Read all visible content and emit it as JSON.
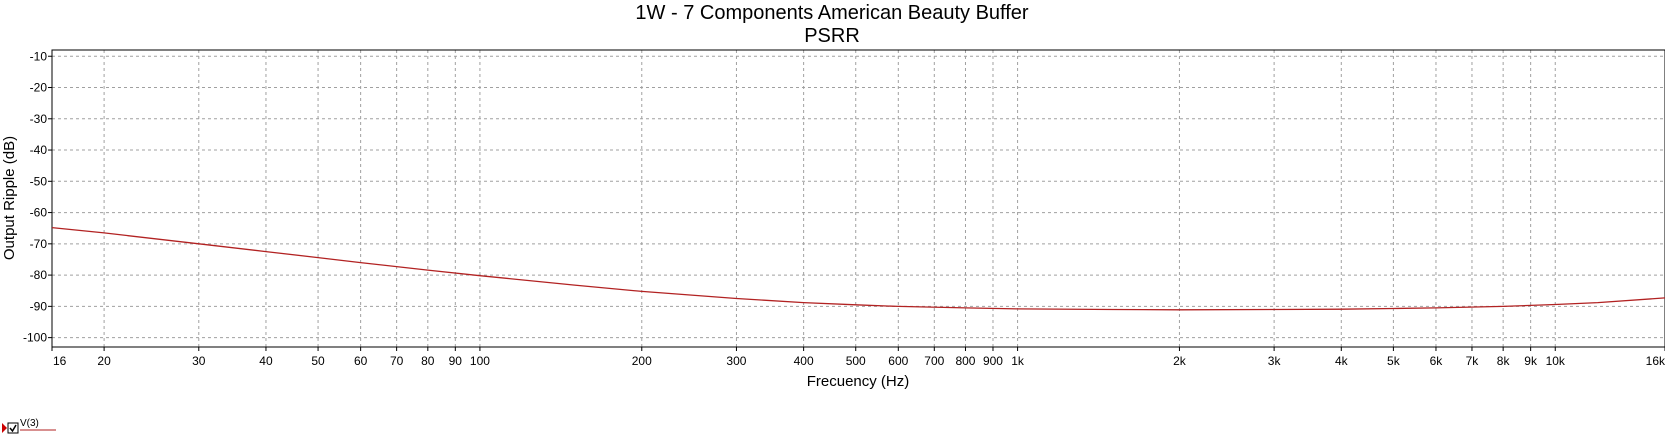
{
  "chart_data": {
    "type": "line",
    "title": "1W - 7 Components American Beauty Buffer",
    "subtitle": "PSRR",
    "xlabel": "Frecuency (Hz)",
    "ylabel": "Output Ripple (dB)",
    "x_scale": "log",
    "xlim": [
      16,
      16000
    ],
    "ylim": [
      -103,
      -8
    ],
    "grid": true,
    "x_ticks": [
      {
        "v": 16,
        "label": "16"
      },
      {
        "v": 20,
        "label": "20"
      },
      {
        "v": 30,
        "label": "30"
      },
      {
        "v": 40,
        "label": "40"
      },
      {
        "v": 50,
        "label": "50"
      },
      {
        "v": 60,
        "label": "60"
      },
      {
        "v": 70,
        "label": "70"
      },
      {
        "v": 80,
        "label": "80"
      },
      {
        "v": 90,
        "label": "90"
      },
      {
        "v": 100,
        "label": "100"
      },
      {
        "v": 200,
        "label": "200"
      },
      {
        "v": 300,
        "label": "300"
      },
      {
        "v": 400,
        "label": "400"
      },
      {
        "v": 500,
        "label": "500"
      },
      {
        "v": 600,
        "label": "600"
      },
      {
        "v": 700,
        "label": "700"
      },
      {
        "v": 800,
        "label": "800"
      },
      {
        "v": 900,
        "label": "900"
      },
      {
        "v": 1000,
        "label": "1k"
      },
      {
        "v": 2000,
        "label": "2k"
      },
      {
        "v": 3000,
        "label": "3k"
      },
      {
        "v": 4000,
        "label": "4k"
      },
      {
        "v": 5000,
        "label": "5k"
      },
      {
        "v": 6000,
        "label": "6k"
      },
      {
        "v": 7000,
        "label": "7k"
      },
      {
        "v": 8000,
        "label": "8k"
      },
      {
        "v": 9000,
        "label": "9k"
      },
      {
        "v": 10000,
        "label": "10k"
      },
      {
        "v": 16000,
        "label": "16k"
      }
    ],
    "y_ticks": [
      {
        "v": -10,
        "label": "-10"
      },
      {
        "v": -20,
        "label": "-20"
      },
      {
        "v": -30,
        "label": "-30"
      },
      {
        "v": -40,
        "label": "-40"
      },
      {
        "v": -50,
        "label": "-50"
      },
      {
        "v": -60,
        "label": "-60"
      },
      {
        "v": -70,
        "label": "-70"
      },
      {
        "v": -80,
        "label": "-80"
      },
      {
        "v": -90,
        "label": "-90"
      },
      {
        "v": -100,
        "label": "-100"
      }
    ],
    "series": [
      {
        "name": "V(3)",
        "color": "#b22222",
        "x": [
          16,
          20,
          30,
          40,
          50,
          60,
          80,
          100,
          150,
          200,
          300,
          400,
          500,
          600,
          800,
          1000,
          1500,
          2000,
          3000,
          4000,
          5000,
          6000,
          8000,
          10000,
          12000,
          16000
        ],
        "y": [
          -64.8,
          -66.5,
          -70.0,
          -72.5,
          -74.4,
          -76.0,
          -78.4,
          -80.2,
          -83.2,
          -85.2,
          -87.5,
          -88.8,
          -89.5,
          -90.0,
          -90.5,
          -90.8,
          -91.0,
          -91.1,
          -91.0,
          -90.9,
          -90.7,
          -90.5,
          -90.0,
          -89.4,
          -88.8,
          -87.3
        ]
      }
    ]
  }
}
